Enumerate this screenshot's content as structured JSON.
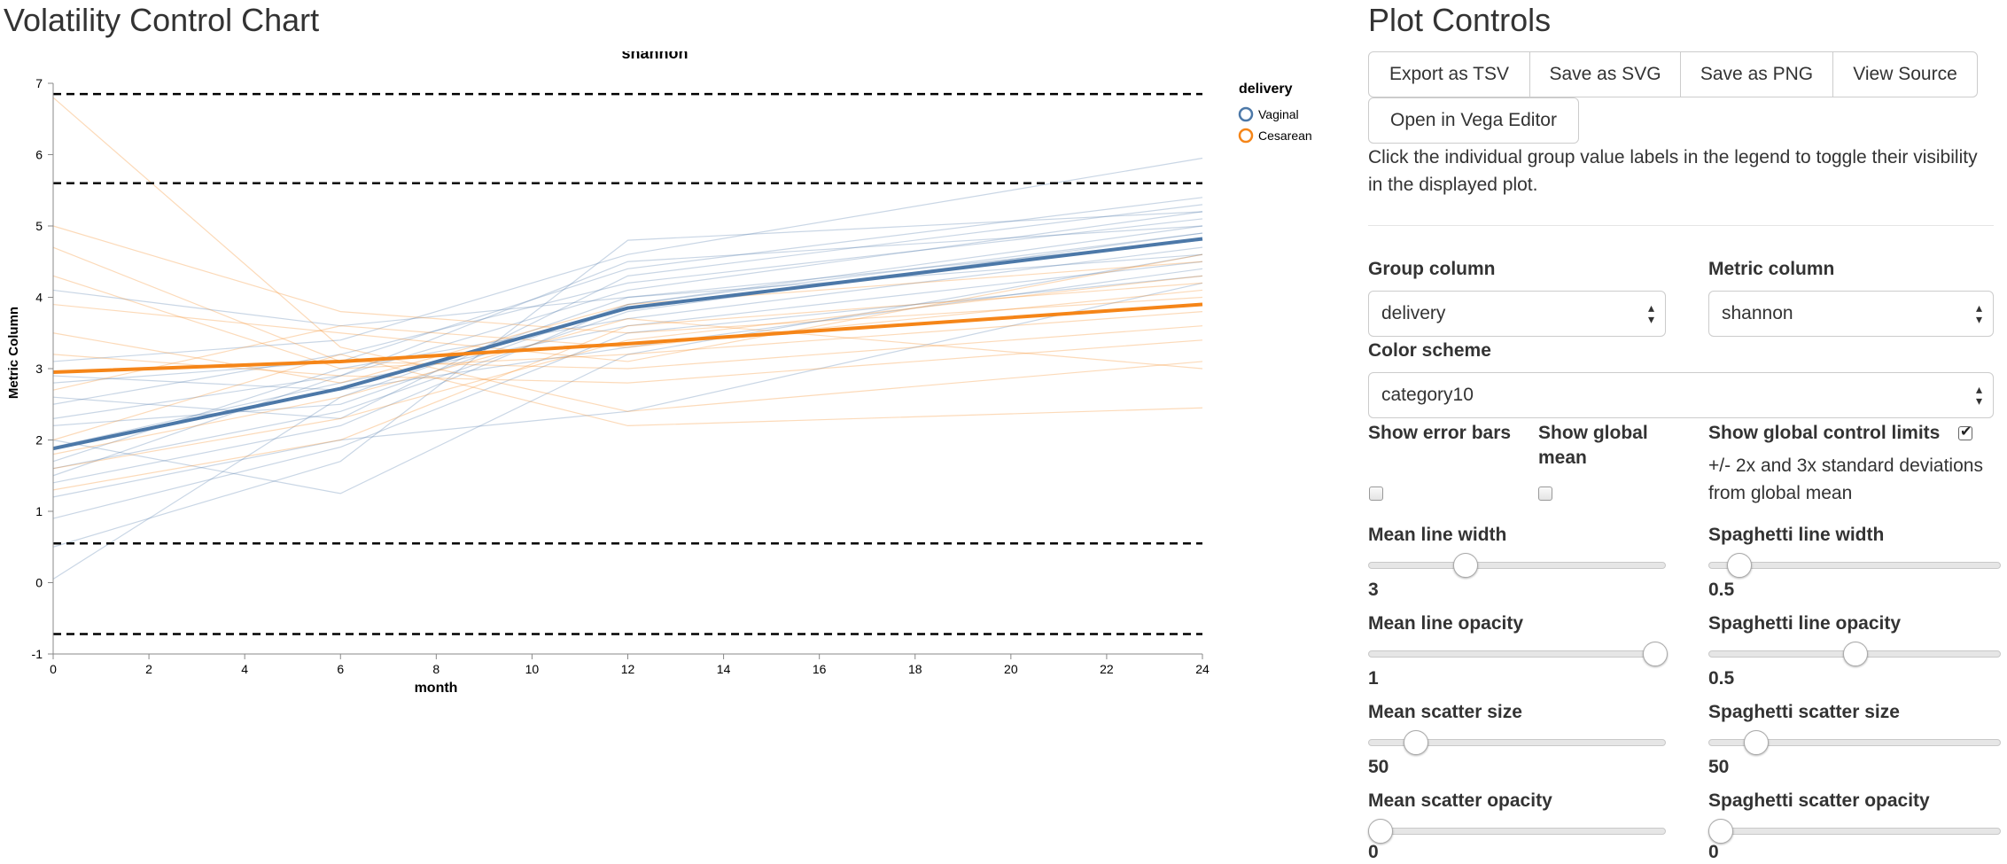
{
  "page": {
    "title": "Volatility Control Chart",
    "controls_title": "Plot Controls"
  },
  "chart_data": {
    "type": "line",
    "title": "shannon",
    "xlabel": "month",
    "ylabel": "Metric Column",
    "xlim": [
      0,
      24
    ],
    "ylim": [
      -1,
      7
    ],
    "xticks": [
      0,
      2,
      4,
      6,
      8,
      10,
      12,
      14,
      16,
      18,
      20,
      22,
      24
    ],
    "yticks": [
      -1,
      0,
      1,
      2,
      3,
      4,
      5,
      6,
      7
    ],
    "legend": {
      "title": "delivery",
      "position": "top-right",
      "entries": [
        "Vaginal",
        "Cesarean"
      ]
    },
    "colors": {
      "Vaginal": "#4c78a8",
      "Cesarean": "#f58518"
    },
    "control_limits": [
      6.85,
      5.6,
      0.55,
      -0.72
    ],
    "series": [
      {
        "name": "Vaginal",
        "kind": "mean",
        "x": [
          0,
          6,
          12,
          24
        ],
        "y": [
          1.88,
          2.72,
          3.85,
          4.82
        ]
      },
      {
        "name": "Cesarean",
        "kind": "mean",
        "x": [
          0,
          6,
          12,
          24
        ],
        "y": [
          2.95,
          3.1,
          3.35,
          3.9
        ]
      }
    ],
    "spaghetti": {
      "Vaginal": [
        [
          2.3,
          2.9,
          4.1,
          5.2
        ],
        [
          1.6,
          2.4,
          3.8,
          4.9
        ],
        [
          2.8,
          3.1,
          4.4,
          5.4
        ],
        [
          0.9,
          1.9,
          3.5,
          4.3
        ],
        [
          1.4,
          2.2,
          3.9,
          5.0
        ],
        [
          3.1,
          3.4,
          4.6,
          5.95
        ],
        [
          2.0,
          1.25,
          3.2,
          4.6
        ],
        [
          0.05,
          2.6,
          4.0,
          4.8
        ],
        [
          2.5,
          3.2,
          4.2,
          5.1
        ],
        [
          1.9,
          2.8,
          3.6,
          4.5
        ],
        [
          1.2,
          2.0,
          2.4,
          4.2
        ],
        [
          2.6,
          2.3,
          4.3,
          5.3
        ],
        [
          1.7,
          3.0,
          3.7,
          4.7
        ],
        [
          2.2,
          2.5,
          3.9,
          4.9
        ],
        [
          0.5,
          1.7,
          4.8,
          5.2
        ],
        [
          4.1,
          3.6,
          4.0,
          4.6
        ],
        [
          2.9,
          2.7,
          3.3,
          4.4
        ],
        [
          1.5,
          2.9,
          4.5,
          5.0
        ]
      ],
      "Cesarean": [
        [
          6.8,
          3.3,
          2.4,
          3.1
        ],
        [
          5.0,
          3.8,
          3.5,
          4.0
        ],
        [
          3.5,
          2.8,
          3.9,
          4.5
        ],
        [
          4.7,
          3.1,
          3.0,
          3.6
        ],
        [
          1.3,
          2.0,
          3.6,
          4.2
        ],
        [
          2.0,
          3.2,
          2.2,
          2.45
        ],
        [
          3.9,
          3.5,
          3.1,
          4.6
        ],
        [
          1.8,
          2.6,
          3.7,
          3.0
        ],
        [
          2.7,
          3.6,
          3.3,
          4.1
        ],
        [
          4.3,
          3.0,
          3.2,
          3.8
        ],
        [
          1.6,
          2.3,
          3.4,
          4.3
        ],
        [
          3.2,
          2.9,
          2.8,
          3.4
        ]
      ]
    }
  },
  "controls": {
    "buttons": {
      "export_tsv": "Export as TSV",
      "save_svg": "Save as SVG",
      "save_png": "Save as PNG",
      "view_source": "View Source",
      "open_vega": "Open in Vega Editor"
    },
    "help_text": "Click the individual group value labels in the legend to toggle their visibility in the displayed plot.",
    "group_column": {
      "label": "Group column",
      "value": "delivery"
    },
    "metric_column": {
      "label": "Metric column",
      "value": "shannon"
    },
    "color_scheme": {
      "label": "Color scheme",
      "value": "category10"
    },
    "show_error_bars": {
      "label": "Show error bars",
      "checked": false
    },
    "show_global_mean": {
      "label": "Show global mean",
      "checked": false
    },
    "show_control_limits": {
      "label": "Show global control limits",
      "checked": true,
      "note": "+/- 2x and 3x standard deviations from global mean"
    },
    "mean_line_width": {
      "label": "Mean line width",
      "value": "3",
      "fraction": 0.31
    },
    "spaghetti_line_width": {
      "label": "Spaghetti line width",
      "value": "0.5",
      "fraction": 0.07
    },
    "mean_line_opacity": {
      "label": "Mean line opacity",
      "value": "1",
      "fraction": 1.0
    },
    "spaghetti_line_opacity": {
      "label": "Spaghetti line opacity",
      "value": "0.5",
      "fraction": 0.5
    },
    "mean_scatter_size": {
      "label": "Mean scatter size",
      "value": "50",
      "fraction": 0.13
    },
    "spaghetti_scatter_size": {
      "label": "Spaghetti scatter size",
      "value": "50",
      "fraction": 0.13
    },
    "mean_scatter_opacity": {
      "label": "Mean scatter opacity",
      "value": "0",
      "fraction": 0.0
    },
    "spaghetti_scatter_opacity": {
      "label": "Spaghetti scatter opacity",
      "value": "0",
      "fraction": 0.0
    }
  }
}
